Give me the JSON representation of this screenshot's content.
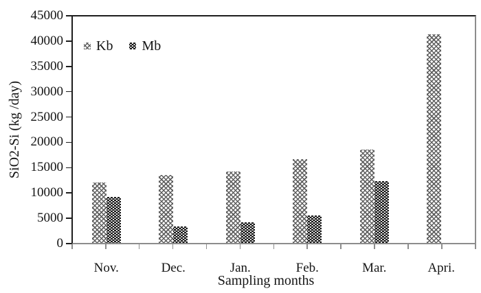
{
  "figure": {
    "background": "#ffffff"
  },
  "chart_data": {
    "type": "bar",
    "title": "",
    "xlabel": "Sampling months",
    "ylabel": "SiO2-Si (kg /day)",
    "categories": [
      "Nov.",
      "Dec.",
      "Jan.",
      "Feb.",
      "Mar.",
      "Apri."
    ],
    "series": [
      {
        "name": "Kb",
        "pattern": "gray-diagonal-hatch",
        "color": "#5e5e5e",
        "values": [
          12000,
          13500,
          14200,
          16600,
          18600,
          41400
        ]
      },
      {
        "name": "Mb",
        "pattern": "black-white-dots",
        "color": "#060606",
        "values": [
          9200,
          3300,
          4100,
          5500,
          12300,
          0
        ]
      }
    ],
    "ylim": [
      0,
      45000
    ],
    "ytick_step": 5000,
    "ytick_labels": [
      "45000",
      "40000",
      "35000",
      "30000",
      "25000",
      "20000",
      "15000",
      "10000",
      "5000",
      "0"
    ],
    "x_minor_ticks_per_category": 2,
    "grid": false,
    "legend_position": "top-left-inside",
    "axis_colors": {
      "left": "#1c1c1c",
      "top": "#1c1c1c",
      "bottom": "#8c8c8c",
      "right": "#8c8c8c"
    }
  }
}
